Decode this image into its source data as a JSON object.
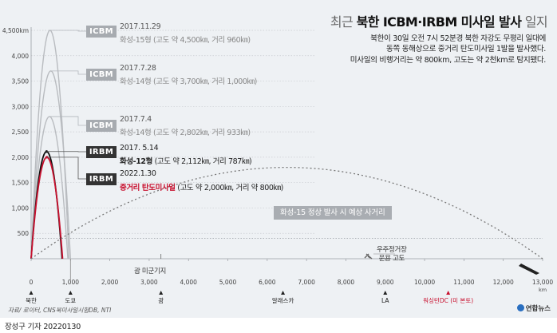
{
  "header": {
    "title_prefix": "최근",
    "title_main": "북한 ICBM·IRBM 미사일 발사",
    "title_suffix": "일지",
    "description": [
      "북한이 30일 오전 7시 52분경 북한 자강도 무평리 일대에",
      "동쪽 동해상으로 중거리 탄도미사일 1발을 발사했다.",
      "미사일의 비행거리는 약 800km, 고도는 약 2천km로 탐지됐다."
    ]
  },
  "launches": [
    {
      "badge": "ICBM",
      "date": "2017.11.29",
      "name": "화성-15형",
      "detail": " (고도 약 4,500㎞, 거리 960㎞)"
    },
    {
      "badge": "ICBM",
      "date": "2017.7.28",
      "name": "화성-14형",
      "detail": " (고도 약 3,700㎞, 거리 1,000㎞)"
    },
    {
      "badge": "ICBM",
      "date": "2017.7.4",
      "name": "화성-14형",
      "detail": " (고도 약 2,802㎞, 거리 933㎞)"
    },
    {
      "badge": "IRBM",
      "date": "2017. 5.14",
      "name": "화성-12형",
      "detail": " (고도 약 2,112㎞, 거리 787㎞)"
    },
    {
      "badge": "IRBM",
      "date": "2022.1.30",
      "name": "중거리 탄도미사일",
      "detail": " (고도 약 2,000㎞, 거리 약 800㎞)"
    }
  ],
  "annotations": {
    "normal_trajectory": "화성-15 정상 발사 시 예상 사거리",
    "satellite": [
      "우주정거장",
      "운용 고도"
    ],
    "guam_base": "괌 미군기지"
  },
  "chart_data": {
    "type": "line",
    "title": "최근 북한 ICBM·IRBM 미사일 발사 일지",
    "xlabel": "",
    "ylabel": "",
    "xlim": [
      0,
      13000
    ],
    "ylim": [
      0,
      4500
    ],
    "x_unit": "km",
    "y_unit": "km",
    "x_ticks": [
      "0",
      "1,000",
      "2,000",
      "3,000",
      "4,000",
      "5,000",
      "6,000",
      "7,000",
      "8,000",
      "9,000",
      "10,000",
      "11,000",
      "12,000",
      "13,000"
    ],
    "y_ticks": [
      "500",
      "1,000",
      "1,500",
      "2,000",
      "2,500",
      "3,000",
      "3,500",
      "4,000",
      "4,500"
    ],
    "y_top_label_suffix": "km",
    "x_last_label_suffix": "km",
    "grid": "horizontal dotted",
    "series": [
      {
        "name": "화성-15형 (2017.11.29)",
        "range": 960,
        "apogee": 4500,
        "color": "#b9bcc0",
        "width": 1.4
      },
      {
        "name": "화성-14형 (2017.7.28)",
        "range": 1000,
        "apogee": 3700,
        "color": "#b9bcc0",
        "width": 1.4
      },
      {
        "name": "화성-14형 (2017.7.4)",
        "range": 933,
        "apogee": 2802,
        "color": "#b9bcc0",
        "width": 1.4
      },
      {
        "name": "화성-12형 (2017.5.14)",
        "range": 787,
        "apogee": 2112,
        "color": "#111111",
        "width": 1.8
      },
      {
        "name": "중거리 탄도미사일 (2022.1.30)",
        "range": 800,
        "apogee": 2000,
        "color": "#c8102e",
        "width": 1.8
      },
      {
        "name": "화성-15 정상 발사 시 예상 사거리",
        "range": 13000,
        "apogee": 1800,
        "color": "#777777",
        "width": 1.3,
        "dashed": true
      }
    ],
    "reference_lines": [
      {
        "name": "우주정거장 운용 고도",
        "y": 400,
        "style": "dotted"
      },
      {
        "x": 1000,
        "style": "solid"
      }
    ],
    "locations": [
      {
        "name": "북한",
        "x": 0,
        "color": "#222222"
      },
      {
        "name": "도쿄",
        "x": 1000,
        "color": "#222222"
      },
      {
        "name": "괌",
        "x": 3300,
        "color": "#222222"
      },
      {
        "name": "알래스카",
        "x": 6400,
        "color": "#222222"
      },
      {
        "name": "LA",
        "x": 9000,
        "color": "#222222"
      },
      {
        "name": "워싱턴DC (미 본토)",
        "x": 10600,
        "color": "#c8102e"
      }
    ]
  },
  "source": "자료/ 로이터, CNS북미사일시험DB, NTI",
  "agency": "연합뉴스",
  "byline": "장성구 기자  20220130"
}
